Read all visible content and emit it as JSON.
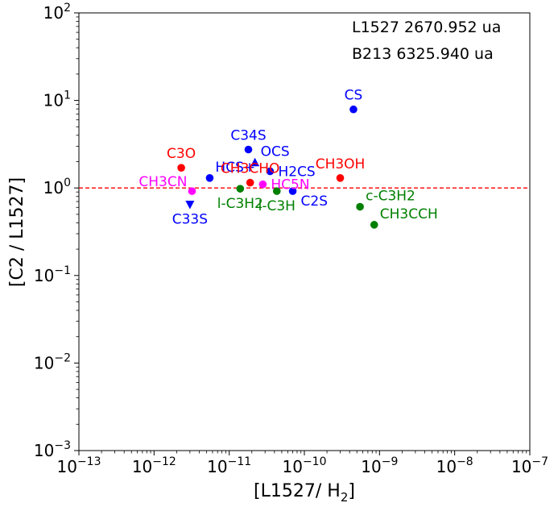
{
  "chart_data": {
    "type": "scatter",
    "title": "",
    "xlabel": "[L1527/ H",
    "xlabel_sub": "2",
    "xlabel_end": "]",
    "ylabel": "[C2 / L1527]",
    "xscale": "log",
    "yscale": "log",
    "xlim": [
      1e-13,
      1e-07
    ],
    "ylim": [
      0.001,
      100
    ],
    "x_ticks": [
      {
        "base": "10",
        "exp": "−13",
        "value": 1e-13
      },
      {
        "base": "10",
        "exp": "−12",
        "value": 1e-12
      },
      {
        "base": "10",
        "exp": "−11",
        "value": 1e-11
      },
      {
        "base": "10",
        "exp": "−10",
        "value": 1e-10
      },
      {
        "base": "10",
        "exp": "−9",
        "value": 1e-09
      },
      {
        "base": "10",
        "exp": "−8",
        "value": 1e-08
      },
      {
        "base": "10",
        "exp": "−7",
        "value": 1e-07
      }
    ],
    "y_ticks": [
      {
        "base": "10",
        "exp": "−3",
        "value": 0.001
      },
      {
        "base": "10",
        "exp": "−2",
        "value": 0.01
      },
      {
        "base": "10",
        "exp": "−1",
        "value": 0.1
      },
      {
        "base": "10",
        "exp": "0",
        "value": 1
      },
      {
        "base": "10",
        "exp": "1",
        "value": 10
      },
      {
        "base": "10",
        "exp": "2",
        "value": 100
      }
    ],
    "reference_line": {
      "y": 1.0,
      "style": "dashed",
      "color": "#ff0000"
    },
    "annotations": [
      "L1527 2670.952 ua",
      "B213 6325.940 ua"
    ],
    "points": [
      {
        "label": "CS",
        "x": 4.5e-10,
        "y": 7.9,
        "color": "#0000ff",
        "marker": "circle",
        "label_pos": "above"
      },
      {
        "label": "C34S",
        "x": 1.8e-11,
        "y": 2.75,
        "color": "#0000ff",
        "marker": "circle",
        "label_pos": "above"
      },
      {
        "label": "OCS",
        "x": 2.2e-11,
        "y": 1.95,
        "color": "#0000ff",
        "marker": "triangle-up",
        "label_pos": "above-right"
      },
      {
        "label": "HCS+",
        "x": 5.5e-12,
        "y": 1.3,
        "color": "#0000ff",
        "marker": "circle",
        "label_pos": "above-right"
      },
      {
        "label": "H2CS",
        "x": 3.5e-11,
        "y": 1.55,
        "color": "#0000ff",
        "marker": "circle",
        "label_pos": "right"
      },
      {
        "label": "C2S",
        "x": 7e-11,
        "y": 0.92,
        "color": "#0000ff",
        "marker": "circle",
        "label_pos": "below-right"
      },
      {
        "label": "C33S",
        "x": 3e-12,
        "y": 0.65,
        "color": "#0000ff",
        "marker": "triangle-down",
        "label_pos": "below"
      },
      {
        "label": "C3O",
        "x": 2.3e-12,
        "y": 1.7,
        "color": "#ff0000",
        "marker": "circle",
        "label_pos": "above"
      },
      {
        "label": "CH3CHO",
        "x": 1.9e-11,
        "y": 1.15,
        "color": "#ff0000",
        "marker": "circle",
        "label_pos": "above"
      },
      {
        "label": "CH3OH",
        "x": 3e-10,
        "y": 1.3,
        "color": "#ff0000",
        "marker": "circle",
        "label_pos": "above"
      },
      {
        "label": "CH3CN",
        "x": 3.2e-12,
        "y": 0.92,
        "color": "#ff00ff",
        "marker": "circle",
        "label_pos": "above-left"
      },
      {
        "label": "HC5N",
        "x": 2.8e-11,
        "y": 1.1,
        "color": "#ff00ff",
        "marker": "circle",
        "label_pos": "right"
      },
      {
        "label": "l-C3H2",
        "x": 1.4e-11,
        "y": 0.98,
        "color": "#008000",
        "marker": "circle",
        "label_pos": "below"
      },
      {
        "label": "l-C3H",
        "x": 4.3e-11,
        "y": 0.92,
        "color": "#008000",
        "marker": "circle",
        "label_pos": "below"
      },
      {
        "label": "c-C3H2",
        "x": 5.5e-10,
        "y": 0.61,
        "color": "#008000",
        "marker": "circle",
        "label_pos": "above-right"
      },
      {
        "label": "CH3CCH",
        "x": 8.5e-10,
        "y": 0.38,
        "color": "#008000",
        "marker": "circle",
        "label_pos": "above-right"
      }
    ]
  }
}
